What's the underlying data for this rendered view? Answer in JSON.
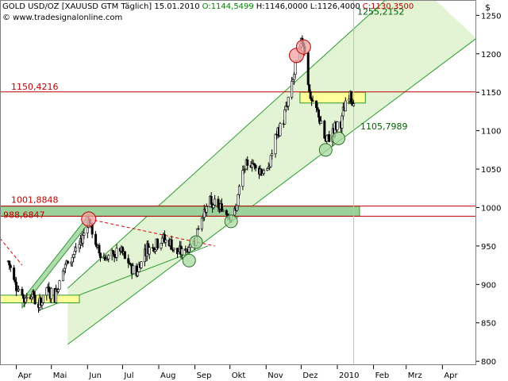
{
  "header": {
    "instrument": "GOLD USD/OZ [XAUUSD GTM Täglich] 15.01.2010",
    "open": "O:1144,5499",
    "high": "H:1146,0000",
    "low": "L:1126,4000",
    "close": "C:1130,3500",
    "website": "© www.tradesignalonline.com",
    "currency": "$"
  },
  "colors": {
    "background": "#ffffff",
    "candle_up": "#ffffff",
    "candle_down": "#000000",
    "channel_fill": "#dff3cf",
    "channel_line": "#2e9a2e",
    "resistance_line": "#e00000",
    "zone_fill": "#ffff99",
    "zone_fill_green": "#9bd29b",
    "marker_green": "#a8d8a0",
    "marker_red": "#f0a0a0",
    "label_green": "#006400",
    "label_red": "#c00000"
  },
  "chart_data": {
    "type": "candlestick",
    "title": "GOLD USD/OZ [XAUUSD GTM Täglich] 15.01.2010",
    "y_axis": {
      "side": "right",
      "ylim": [
        795,
        1270
      ],
      "ticks": [
        "800",
        "850",
        "900",
        "950",
        "1000",
        "1050",
        "1100",
        "1150",
        "1200",
        "1250"
      ]
    },
    "x_axis": {
      "labels": [
        "Apr",
        "Mai",
        "Jun",
        "Jul",
        "Aug",
        "Sep",
        "Okt",
        "Nov",
        "Dez",
        "2010",
        "Feb",
        "Mrz",
        "Apr"
      ]
    },
    "levels": [
      {
        "label": "1150,4216",
        "value": 1150.42,
        "color": "#c00000"
      },
      {
        "label": "1001,8848",
        "value": 1001.88,
        "color": "#c00000"
      },
      {
        "label": "988,6847",
        "value": 988.68,
        "color": "#c00000"
      }
    ],
    "annotations": [
      {
        "label": "1255,2152",
        "value": 1255.22,
        "color": "#006400"
      },
      {
        "label": "1105,7989",
        "value": 1105.8,
        "color": "#006400"
      }
    ],
    "price_path": [
      [
        "2009-03-25",
        930
      ],
      [
        "2009-04-01",
        900
      ],
      [
        "2009-04-08",
        880
      ],
      [
        "2009-04-14",
        890
      ],
      [
        "2009-04-20",
        870
      ],
      [
        "2009-04-27",
        895
      ],
      [
        "2009-05-04",
        885
      ],
      [
        "2009-05-11",
        920
      ],
      [
        "2009-05-18",
        935
      ],
      [
        "2009-05-25",
        950
      ],
      [
        "2009-06-02",
        985
      ],
      [
        "2009-06-08",
        950
      ],
      [
        "2009-06-15",
        935
      ],
      [
        "2009-06-22",
        935
      ],
      [
        "2009-06-29",
        945
      ],
      [
        "2009-07-06",
        925
      ],
      [
        "2009-07-13",
        915
      ],
      [
        "2009-07-20",
        945
      ],
      [
        "2009-07-27",
        950
      ],
      [
        "2009-08-03",
        960
      ],
      [
        "2009-08-10",
        955
      ],
      [
        "2009-08-17",
        940
      ],
      [
        "2009-08-24",
        945
      ],
      [
        "2009-08-31",
        955
      ],
      [
        "2009-09-07",
        990
      ],
      [
        "2009-09-14",
        1005
      ],
      [
        "2009-09-21",
        1000
      ],
      [
        "2009-09-28",
        995
      ],
      [
        "2009-10-05",
        990
      ],
      [
        "2009-10-12",
        1045
      ],
      [
        "2009-10-19",
        1060
      ],
      [
        "2009-10-26",
        1050
      ],
      [
        "2009-11-02",
        1045
      ],
      [
        "2009-11-09",
        1090
      ],
      [
        "2009-11-16",
        1115
      ],
      [
        "2009-11-23",
        1160
      ],
      [
        "2009-11-30",
        1210
      ],
      [
        "2009-12-03",
        1217
      ],
      [
        "2009-12-09",
        1140
      ],
      [
        "2009-12-16",
        1120
      ],
      [
        "2009-12-22",
        1085
      ],
      [
        "2009-12-28",
        1100
      ],
      [
        "2010-01-04",
        1110
      ],
      [
        "2010-01-08",
        1135
      ],
      [
        "2010-01-12",
        1150
      ],
      [
        "2010-01-15",
        1135
      ]
    ],
    "markers": [
      {
        "date": "2009-06-02",
        "value": 985,
        "type": "top"
      },
      {
        "date": "2009-09-02",
        "value": 955,
        "type": "low"
      },
      {
        "date": "2009-08-27",
        "value": 931,
        "type": "low"
      },
      {
        "date": "2009-10-02",
        "value": 982,
        "type": "low"
      },
      {
        "date": "2009-11-27",
        "value": 1198,
        "type": "top"
      },
      {
        "date": "2009-12-03",
        "value": 1209,
        "type": "top"
      },
      {
        "date": "2009-12-22",
        "value": 1075,
        "type": "low"
      },
      {
        "date": "2010-01-02",
        "value": 1090,
        "type": "low"
      }
    ]
  }
}
